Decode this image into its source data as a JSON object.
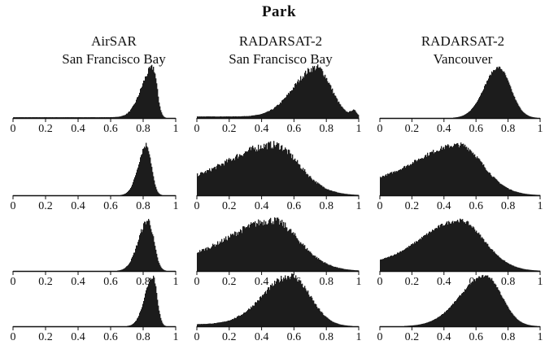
{
  "chart_data": {
    "type": "area",
    "title": "Park",
    "columns": [
      {
        "line1": "AirSAR",
        "line2": "San Francisco Bay"
      },
      {
        "line1": "RADARSAT-2",
        "line2": "San Francisco Bay"
      },
      {
        "line1": "RADARSAT-2",
        "line2": "Vancouver"
      }
    ],
    "x_ticks": [
      "0",
      "0.2",
      "0.4",
      "0.6",
      "0.8",
      "1"
    ],
    "xlim": [
      0,
      1
    ],
    "grid": false,
    "panels": [
      {
        "row": 1,
        "col": 1,
        "shape": {
          "peak": 0.86,
          "sl": 0.07,
          "sr": 0.025,
          "base": 0.015,
          "noise": 0.07
        }
      },
      {
        "row": 1,
        "col": 2,
        "shape": {
          "peak": 0.74,
          "sl": 0.14,
          "sr": 0.09,
          "base": 0.03,
          "noise": 0.07,
          "tail": 0.12
        }
      },
      {
        "row": 1,
        "col": 3,
        "shape": {
          "peak": 0.74,
          "sl": 0.09,
          "sr": 0.075,
          "base": 0.0,
          "noise": 0.03
        }
      },
      {
        "row": 2,
        "col": 1,
        "shape": {
          "peak": 0.82,
          "sl": 0.05,
          "sr": 0.03,
          "base": 0.0,
          "noise": 0.06
        }
      },
      {
        "row": 2,
        "col": 2,
        "shape": {
          "peak": 0.48,
          "sl": 0.28,
          "sr": 0.17,
          "base": 0.22,
          "noise": 0.08
        }
      },
      {
        "row": 2,
        "col": 3,
        "shape": {
          "peak": 0.5,
          "sl": 0.27,
          "sr": 0.16,
          "base": 0.22,
          "noise": 0.05
        }
      },
      {
        "row": 3,
        "col": 1,
        "shape": {
          "peak": 0.83,
          "sl": 0.06,
          "sr": 0.035,
          "base": 0.0,
          "noise": 0.07
        }
      },
      {
        "row": 3,
        "col": 2,
        "shape": {
          "peak": 0.47,
          "sl": 0.26,
          "sr": 0.18,
          "base": 0.22,
          "noise": 0.08
        }
      },
      {
        "row": 3,
        "col": 3,
        "shape": {
          "peak": 0.5,
          "sl": 0.24,
          "sr": 0.16,
          "base": 0.12,
          "noise": 0.04
        }
      },
      {
        "row": 4,
        "col": 1,
        "shape": {
          "peak": 0.86,
          "sl": 0.05,
          "sr": 0.025,
          "base": 0.0,
          "noise": 0.06
        }
      },
      {
        "row": 4,
        "col": 2,
        "shape": {
          "peak": 0.58,
          "sl": 0.17,
          "sr": 0.12,
          "base": 0.04,
          "noise": 0.07
        }
      },
      {
        "row": 4,
        "col": 3,
        "shape": {
          "peak": 0.66,
          "sl": 0.16,
          "sr": 0.1,
          "base": 0.0,
          "noise": 0.03
        }
      }
    ]
  }
}
